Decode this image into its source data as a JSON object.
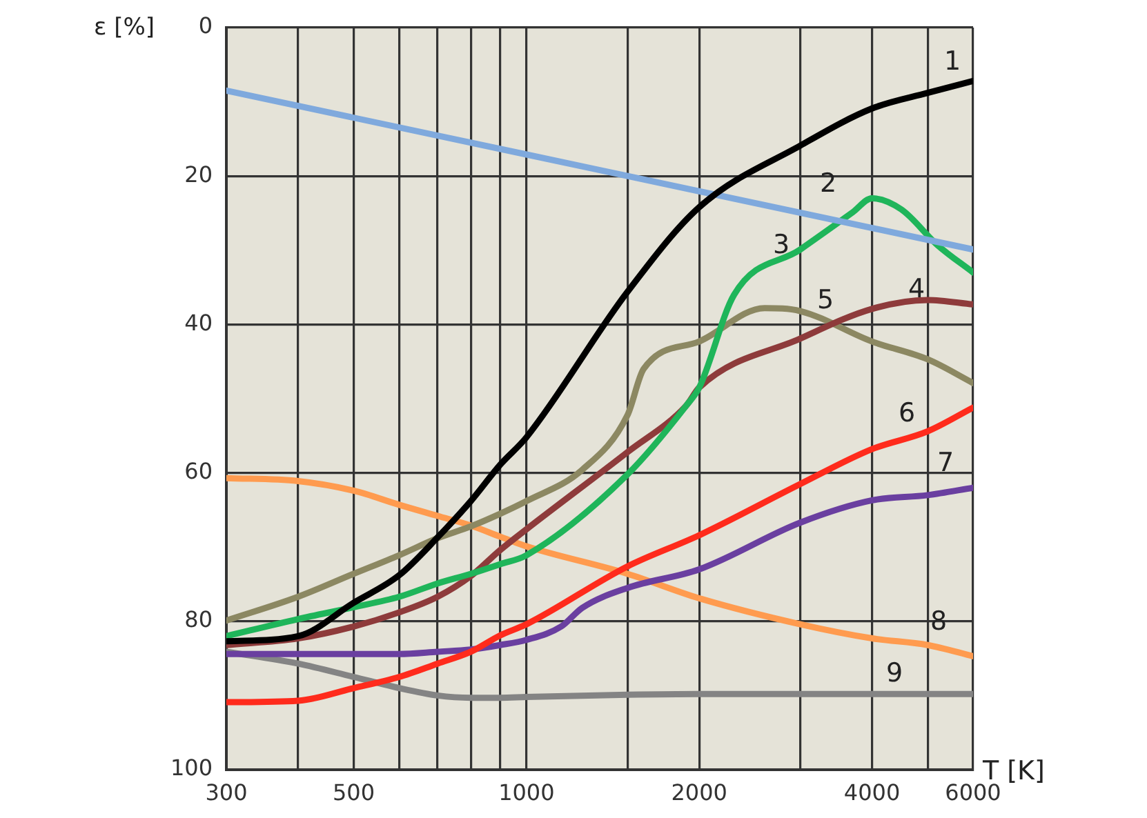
{
  "chart_data": {
    "type": "line",
    "xlabel": "T [K]",
    "ylabel": "ε [%]",
    "log": "x",
    "grid": true,
    "legend": false,
    "marker": "none",
    "line_style": "solid",
    "xlim": [
      300,
      6000
    ],
    "ylim": [
      100,
      0
    ],
    "xticks": [
      300,
      {
        "value": 400,
        "label": null
      },
      500,
      {
        "value": 600,
        "label": null
      },
      {
        "value": 700,
        "label": null
      },
      {
        "value": 800,
        "label": null
      },
      {
        "value": 900,
        "label": null
      },
      1000,
      {
        "value": 1500,
        "label": null
      },
      2000,
      {
        "value": 3000,
        "label": null
      },
      4000,
      {
        "value": 5000,
        "label": null
      },
      6000
    ],
    "yticks": [
      0,
      20,
      40,
      60,
      80,
      100
    ],
    "series": [
      {
        "name": "1",
        "color": "#000000",
        "x": [
          300,
          400,
          500,
          600,
          700,
          800,
          900,
          1000,
          1500,
          2000,
          3000,
          4000,
          5000,
          6000
        ],
        "values": [
          82.7,
          82,
          77.5,
          73.8,
          68.7,
          63.8,
          58.9,
          55.2,
          35.6,
          24.2,
          15.9,
          10.9,
          8.8,
          7.2
        ]
      },
      {
        "name": "2",
        "color": "#7fa9dd",
        "x": [
          300,
          1000,
          6000
        ],
        "values": [
          8.5,
          17.1,
          29.9
        ]
      },
      {
        "name": "3",
        "color": "#1fb55a",
        "x": [
          300,
          400,
          500,
          600,
          700,
          800,
          900,
          1000,
          1500,
          1900,
          2000,
          2300,
          3000,
          3700,
          4000,
          4500,
          5200,
          6000
        ],
        "values": [
          82,
          79.7,
          78.1,
          76.7,
          74.9,
          73.6,
          72.3,
          71.1,
          60.2,
          50.9,
          48.5,
          36,
          29.9,
          24.9,
          23,
          24.5,
          29.3,
          33
        ]
      },
      {
        "name": "4",
        "color": "#8e3b3b",
        "x": [
          300,
          400,
          500,
          600,
          700,
          800,
          900,
          1000,
          1500,
          1900,
          2000,
          3000,
          4000,
          5000,
          6000
        ],
        "values": [
          83.2,
          82.3,
          80.7,
          78.8,
          76.7,
          73.9,
          70.4,
          67.6,
          57.2,
          50.9,
          48.5,
          41.9,
          37.9,
          36.7,
          37.3
        ]
      },
      {
        "name": "5",
        "color": "#8c8862",
        "x": [
          300,
          400,
          500,
          600,
          700,
          800,
          900,
          1000,
          1250,
          1500,
          1600,
          2000,
          2600,
          3000,
          4000,
          5000,
          6000
        ],
        "values": [
          79.9,
          76.7,
          73.6,
          71.1,
          68.8,
          67.2,
          65.5,
          63.8,
          59.6,
          52.2,
          46,
          42.3,
          37.8,
          38.2,
          42.3,
          44.7,
          47.9
        ]
      },
      {
        "name": "6",
        "color": "#ff2b1c",
        "x": [
          300,
          400,
          500,
          600,
          700,
          800,
          900,
          1000,
          1500,
          2000,
          3000,
          4000,
          5000,
          6000
        ],
        "values": [
          90.9,
          90.7,
          89,
          87.5,
          85.7,
          84.1,
          81.9,
          80.4,
          72.6,
          68.4,
          61.5,
          56.8,
          54.4,
          51.2
        ]
      },
      {
        "name": "7",
        "color": "#6a3fa0",
        "x": [
          300,
          400,
          500,
          600,
          700,
          800,
          900,
          1000,
          1150,
          1250,
          1500,
          2000,
          3000,
          4000,
          5000,
          6000
        ],
        "values": [
          84.4,
          84.4,
          84.4,
          84.4,
          84.1,
          83.8,
          83.2,
          82.5,
          80.7,
          78.2,
          75.5,
          73,
          66.7,
          63.7,
          63,
          62
        ]
      },
      {
        "name": "8",
        "color": "#ff9b4f",
        "x": [
          300,
          400,
          500,
          600,
          700,
          800,
          900,
          1000,
          1500,
          2000,
          3000,
          4000,
          5000,
          6000
        ],
        "values": [
          60.7,
          61.1,
          62.4,
          64.3,
          65.8,
          67.1,
          68.6,
          69.9,
          73.6,
          76.9,
          80.4,
          82.3,
          83.2,
          84.7
        ]
      },
      {
        "name": "9",
        "color": "#848484",
        "x": [
          300,
          400,
          500,
          600,
          700,
          800,
          900,
          1000,
          1500,
          2000,
          3000,
          4000,
          5000,
          6000
        ],
        "values": [
          84.1,
          85.7,
          87.5,
          89,
          90,
          90.3,
          90.3,
          90.2,
          89.9,
          89.8,
          89.8,
          89.8,
          89.8,
          89.8
        ]
      }
    ]
  }
}
